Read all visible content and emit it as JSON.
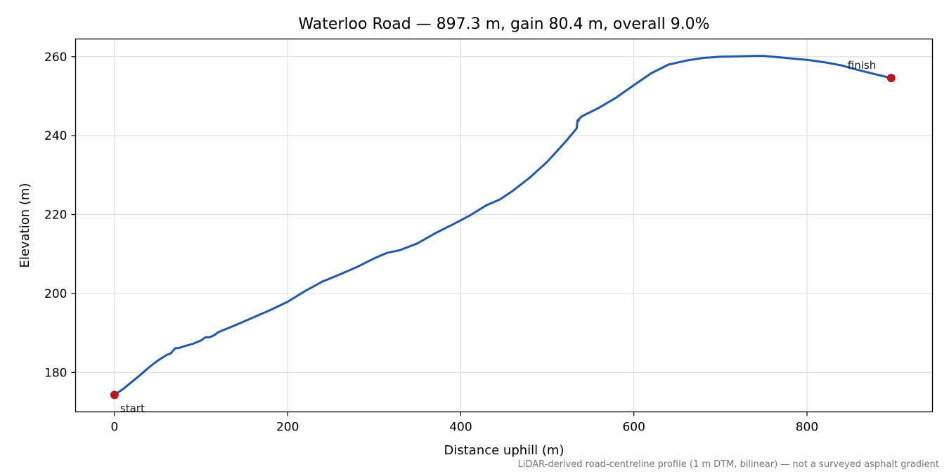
{
  "chart_data": {
    "type": "line",
    "title": "Waterloo Road — 897.3 m, gain 80.4 m, overall 9.0%",
    "xlabel": "Distance uphill (m)",
    "ylabel": "Elevation (m)",
    "xlim": [
      -45,
      945
    ],
    "ylim": [
      170,
      264.5
    ],
    "xticks": [
      0,
      200,
      400,
      600,
      800
    ],
    "yticks": [
      180,
      200,
      220,
      240,
      260
    ],
    "grid": true,
    "footnote": "LiDAR-derived road-centreline profile (1 m DTM, bilinear) — not a surveyed asphalt gradient",
    "series": [
      {
        "color": "#1f5aa8",
        "x": [
          0,
          10,
          20,
          30,
          40,
          50,
          60,
          65,
          68,
          70,
          75,
          80,
          90,
          100,
          105,
          110,
          115,
          120,
          140,
          160,
          180,
          200,
          220,
          240,
          260,
          280,
          300,
          315,
          330,
          350,
          370,
          390,
          410,
          430,
          445,
          460,
          480,
          500,
          520,
          532,
          534,
          535,
          536,
          537,
          540,
          560,
          580,
          600,
          620,
          640,
          660,
          680,
          700,
          720,
          740,
          750,
          760,
          780,
          800,
          820,
          840,
          860,
          880,
          897.3
        ],
        "y": [
          174.3,
          175.8,
          177.6,
          179.4,
          181.3,
          183.0,
          184.4,
          184.8,
          185.6,
          186.1,
          186.2,
          186.6,
          187.2,
          188.1,
          188.9,
          188.9,
          189.4,
          190.2,
          192.0,
          193.9,
          195.8,
          197.9,
          200.6,
          203.0,
          204.8,
          206.7,
          208.9,
          210.3,
          211.0,
          212.7,
          215.2,
          217.4,
          219.7,
          222.4,
          223.8,
          226.0,
          229.4,
          233.4,
          238.2,
          241.3,
          241.9,
          243.9,
          243.7,
          244.3,
          244.9,
          247.1,
          249.7,
          252.8,
          255.8,
          258.0,
          259.0,
          259.7,
          260.0,
          260.1,
          260.2,
          260.2,
          260.0,
          259.6,
          259.2,
          258.6,
          257.8,
          256.6,
          255.5,
          254.6
        ]
      }
    ],
    "markers": [
      {
        "x": 0,
        "y": 174.3,
        "label": "start",
        "color": "#c0151f"
      },
      {
        "x": 897.3,
        "y": 254.6,
        "label": "finish",
        "color": "#c0151f"
      }
    ]
  }
}
